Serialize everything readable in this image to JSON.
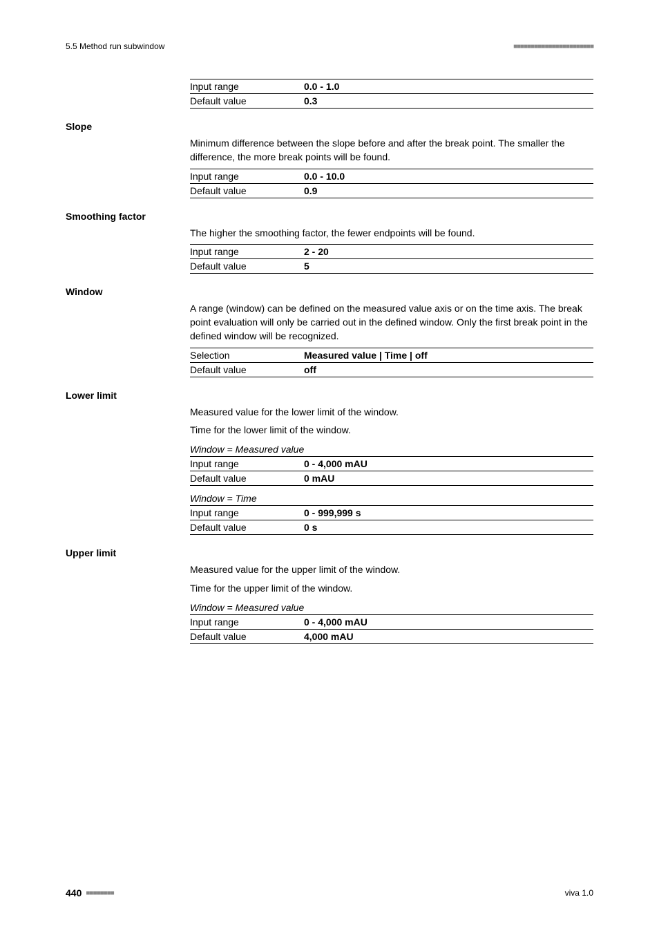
{
  "header": {
    "section_ref": "5.5 Method run subwindow",
    "deco": "■■■■■■■■■■■■■■■■■■■■■■■"
  },
  "top_table": {
    "input_range_label": "Input range",
    "input_range_value": "0.0 - 1.0",
    "default_label": "Default value",
    "default_value": "0.3"
  },
  "slope": {
    "heading": "Slope",
    "desc": "Minimum difference between the slope before and after the break point. The smaller the difference, the more break points will be found.",
    "input_range_label": "Input range",
    "input_range_value": "0.0 - 10.0",
    "default_label": "Default value",
    "default_value": "0.9"
  },
  "smoothing": {
    "heading": "Smoothing factor",
    "desc": "The higher the smoothing factor, the fewer endpoints will be found.",
    "input_range_label": "Input range",
    "input_range_value": "2 - 20",
    "default_label": "Default value",
    "default_value": "5"
  },
  "window": {
    "heading": "Window",
    "desc": "A range (window) can be defined on the measured value axis or on the time axis. The break point evaluation will only be carried out in the defined window. Only the first break point in the defined window will be recognized.",
    "selection_label": "Selection",
    "selection_value": "Measured value | Time | off",
    "default_label": "Default value",
    "default_value": "off"
  },
  "lower": {
    "heading": "Lower limit",
    "desc1": "Measured value for the lower limit of the window.",
    "desc2": "Time for the lower limit of the window.",
    "caption1": "Window = Measured value",
    "mv_input_range_label": "Input range",
    "mv_input_range_value": "0 - 4,000 mAU",
    "mv_default_label": "Default value",
    "mv_default_value": "0 mAU",
    "caption2": "Window = Time",
    "t_input_range_label": "Input range",
    "t_input_range_value": "0 - 999,999 s",
    "t_default_label": "Default value",
    "t_default_value": "0 s"
  },
  "upper": {
    "heading": "Upper limit",
    "desc1": "Measured value for the upper limit of the window.",
    "desc2": "Time for the upper limit of the window.",
    "caption1": "Window = Measured value",
    "mv_input_range_label": "Input range",
    "mv_input_range_value": "0 - 4,000 mAU",
    "mv_default_label": "Default value",
    "mv_default_value": "4,000 mAU"
  },
  "footer": {
    "page": "440",
    "deco": "■■■■■■■■",
    "right": "viva 1.0"
  }
}
